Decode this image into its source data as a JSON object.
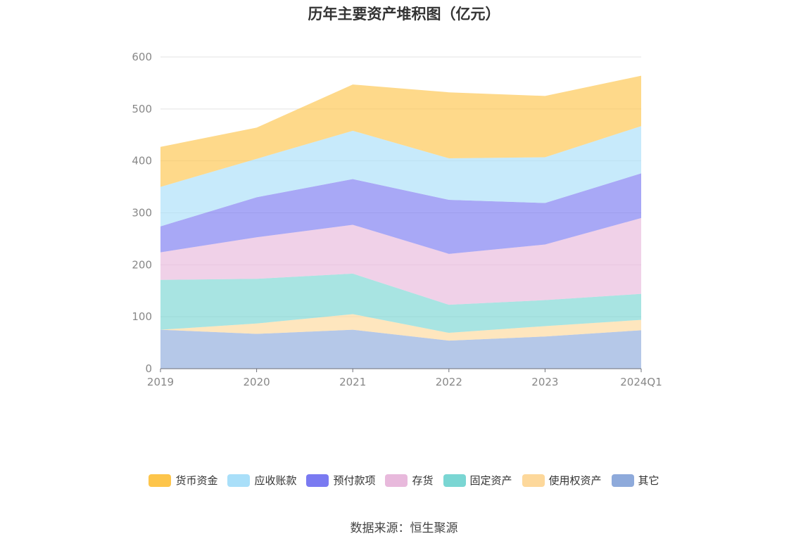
{
  "chart_data": {
    "type": "area",
    "stacked": true,
    "title": "历年主要资产堆积图（亿元）",
    "categories": [
      "2019",
      "2020",
      "2021",
      "2022",
      "2023",
      "2024Q1"
    ],
    "ylim": [
      0,
      600
    ],
    "yticks": [
      0,
      100,
      200,
      300,
      400,
      500,
      600
    ],
    "grid": true,
    "legend_position": "bottom",
    "series": [
      {
        "name": "其它",
        "color": "#8eaadb",
        "values": [
          75,
          67,
          75,
          54,
          62,
          74
        ]
      },
      {
        "name": "使用权资产",
        "color": "#fdd89b",
        "values": [
          0,
          20,
          30,
          15,
          20,
          20
        ]
      },
      {
        "name": "固定资产",
        "color": "#7ad6d3",
        "values": [
          96,
          86,
          78,
          54,
          50,
          50
        ]
      },
      {
        "name": "存货",
        "color": "#e8b9dc",
        "values": [
          53,
          80,
          94,
          98,
          107,
          146
        ]
      },
      {
        "name": "预付款项",
        "color": "#7a7af1",
        "values": [
          50,
          77,
          88,
          104,
          80,
          86
        ]
      },
      {
        "name": "应收账款",
        "color": "#a9dff9",
        "values": [
          76,
          74,
          93,
          80,
          88,
          91
        ]
      },
      {
        "name": "货币资金",
        "color": "#fdc54b",
        "values": [
          77,
          60,
          89,
          127,
          118,
          97
        ]
      }
    ]
  },
  "legend_order": [
    "货币资金",
    "应收账款",
    "预付款项",
    "存货",
    "固定资产",
    "使用权资产",
    "其它"
  ],
  "source_text": "数据来源：恒生聚源"
}
